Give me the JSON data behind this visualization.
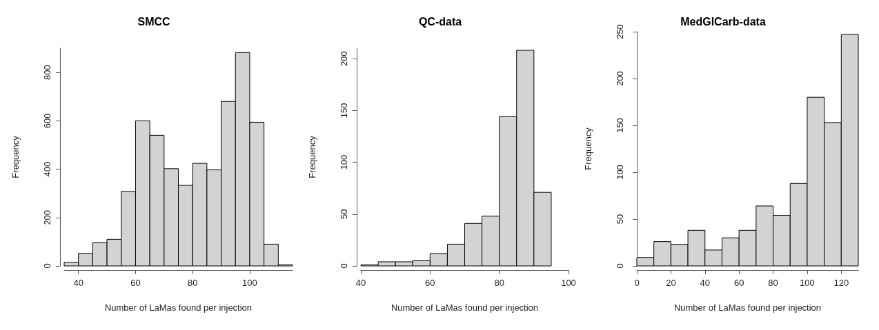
{
  "chart_data": [
    {
      "type": "histogram",
      "title": "SMCC",
      "xlabel": "Number of LaMas found per injection",
      "ylabel": "Frequency",
      "color": "#d3d3d3",
      "bins": [
        35,
        40,
        45,
        50,
        55,
        60,
        65,
        70,
        75,
        80,
        85,
        90,
        95,
        100,
        105,
        110,
        115
      ],
      "values": [
        15,
        52,
        97,
        110,
        308,
        600,
        540,
        402,
        333,
        424,
        397,
        680,
        882,
        594,
        90,
        5
      ],
      "xlim": [
        35,
        115
      ],
      "xticks": [
        40,
        60,
        80,
        100
      ],
      "ylim": [
        0,
        900
      ],
      "yticks": [
        0,
        200,
        400,
        600,
        800
      ]
    },
    {
      "type": "histogram",
      "title": "QC-data",
      "xlabel": "Number of LaMas found per injection",
      "ylabel": "Frequency",
      "color": "#d3d3d3",
      "bins": [
        40,
        45,
        50,
        55,
        60,
        65,
        70,
        75,
        80,
        85,
        90,
        95
      ],
      "values": [
        1,
        4,
        4,
        5,
        12,
        21,
        41,
        48,
        144,
        208,
        71
      ],
      "xlim": [
        40,
        100
      ],
      "xticks": [
        40,
        60,
        80,
        100
      ],
      "ylim": [
        0,
        210
      ],
      "yticks": [
        0,
        50,
        100,
        150,
        200
      ]
    },
    {
      "type": "histogram",
      "title": "MedGlCarb-data",
      "xlabel": "Number of LaMas found per injection",
      "ylabel": "Frequency",
      "color": "#d3d3d3",
      "bins": [
        0,
        10,
        20,
        30,
        40,
        50,
        60,
        70,
        80,
        90,
        100,
        110,
        120,
        130
      ],
      "values": [
        9,
        26,
        23,
        38,
        17,
        30,
        38,
        64,
        54,
        88,
        180,
        153,
        247
      ],
      "xlim": [
        0,
        130
      ],
      "xticks": [
        0,
        20,
        40,
        60,
        80,
        100,
        120
      ],
      "ylim": [
        0,
        250
      ],
      "yticks": [
        0,
        50,
        100,
        150,
        200,
        250
      ]
    }
  ]
}
